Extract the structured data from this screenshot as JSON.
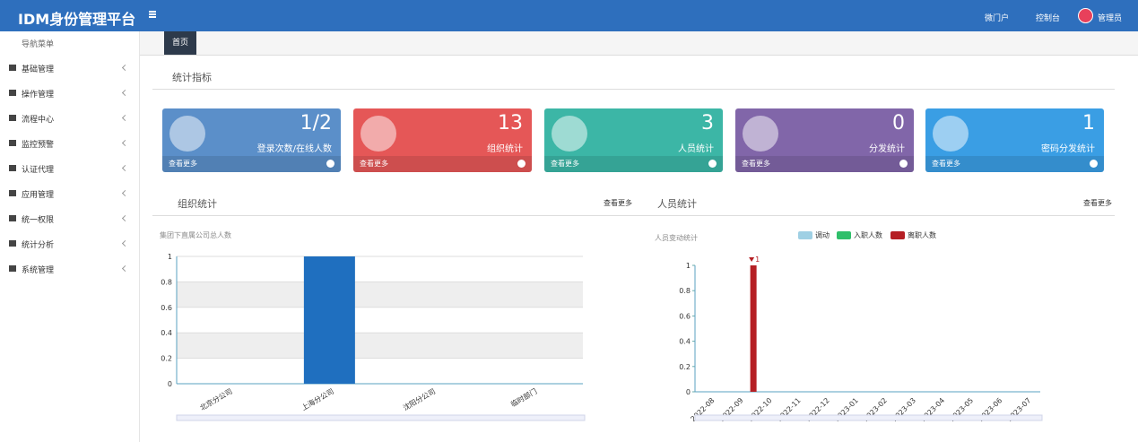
{
  "header": {
    "title": "IDM身份管理平台",
    "links": [
      "微门户",
      "控制台",
      "管理员"
    ]
  },
  "sidebar": {
    "title": "导航菜单",
    "items": [
      "基础管理",
      "操作管理",
      "流程中心",
      "监控预警",
      "认证代理",
      "应用管理",
      "统一权限",
      "统计分析",
      "系统管理"
    ]
  },
  "tabs": [
    "首页"
  ],
  "stats": {
    "title": "统计指标",
    "cards": [
      {
        "value": "1/2",
        "label": "登录次数/在线人数",
        "more": "查看更多",
        "color": "#5b8fc9"
      },
      {
        "value": 13,
        "label": "组织统计",
        "more": "查看更多",
        "color": "#e55757"
      },
      {
        "value": 3,
        "label": "人员统计",
        "more": "查看更多",
        "color": "#3cb6a6"
      },
      {
        "value": 0,
        "label": "分发统计",
        "more": "查看更多",
        "color": "#8166a9"
      },
      {
        "value": 1,
        "label": "密码分发统计",
        "more": "查看更多",
        "color": "#3a9ee4"
      }
    ]
  },
  "panels": [
    {
      "title": "组织统计",
      "more": "查看更多"
    },
    {
      "title": "人员统计",
      "more": "查看更多"
    }
  ],
  "chart_data": [
    {
      "type": "bar",
      "title": "集团下直属公司总人数",
      "categories": [
        "北京分公司",
        "上海分公司",
        "沈阳分公司",
        "临时部门"
      ],
      "values": [
        0,
        1,
        0,
        0
      ],
      "color": "#1f6fbf",
      "ylim": [
        0,
        1
      ],
      "yticks": [
        0,
        0.2,
        0.4,
        0.6,
        0.8,
        1
      ],
      "grid": true
    },
    {
      "type": "bar",
      "title": "人员变动统计",
      "categories": [
        "2022-08",
        "2022-09",
        "2022-10",
        "2022-11",
        "2022-12",
        "2023-01",
        "2023-02",
        "2023-03",
        "2023-04",
        "2023-05",
        "2023-06",
        "2023-07"
      ],
      "series": [
        {
          "name": "调动",
          "color": "#9fd0e4",
          "values": [
            0,
            0,
            0,
            0,
            0,
            0,
            0,
            0,
            0,
            0,
            0,
            0
          ]
        },
        {
          "name": "入职人数",
          "color": "#2fbf6a",
          "values": [
            0,
            0,
            0,
            0,
            0,
            0,
            0,
            0,
            0,
            0,
            0,
            0
          ]
        },
        {
          "name": "离职人数",
          "color": "#b51f24",
          "values": [
            0,
            1,
            0,
            0,
            0,
            0,
            0,
            0,
            0,
            0,
            0,
            0
          ],
          "max_label": true
        }
      ],
      "ylim": [
        0,
        1
      ],
      "yticks": [
        0,
        0.2,
        0.4,
        0.6,
        0.8,
        1
      ],
      "grid": false
    }
  ]
}
